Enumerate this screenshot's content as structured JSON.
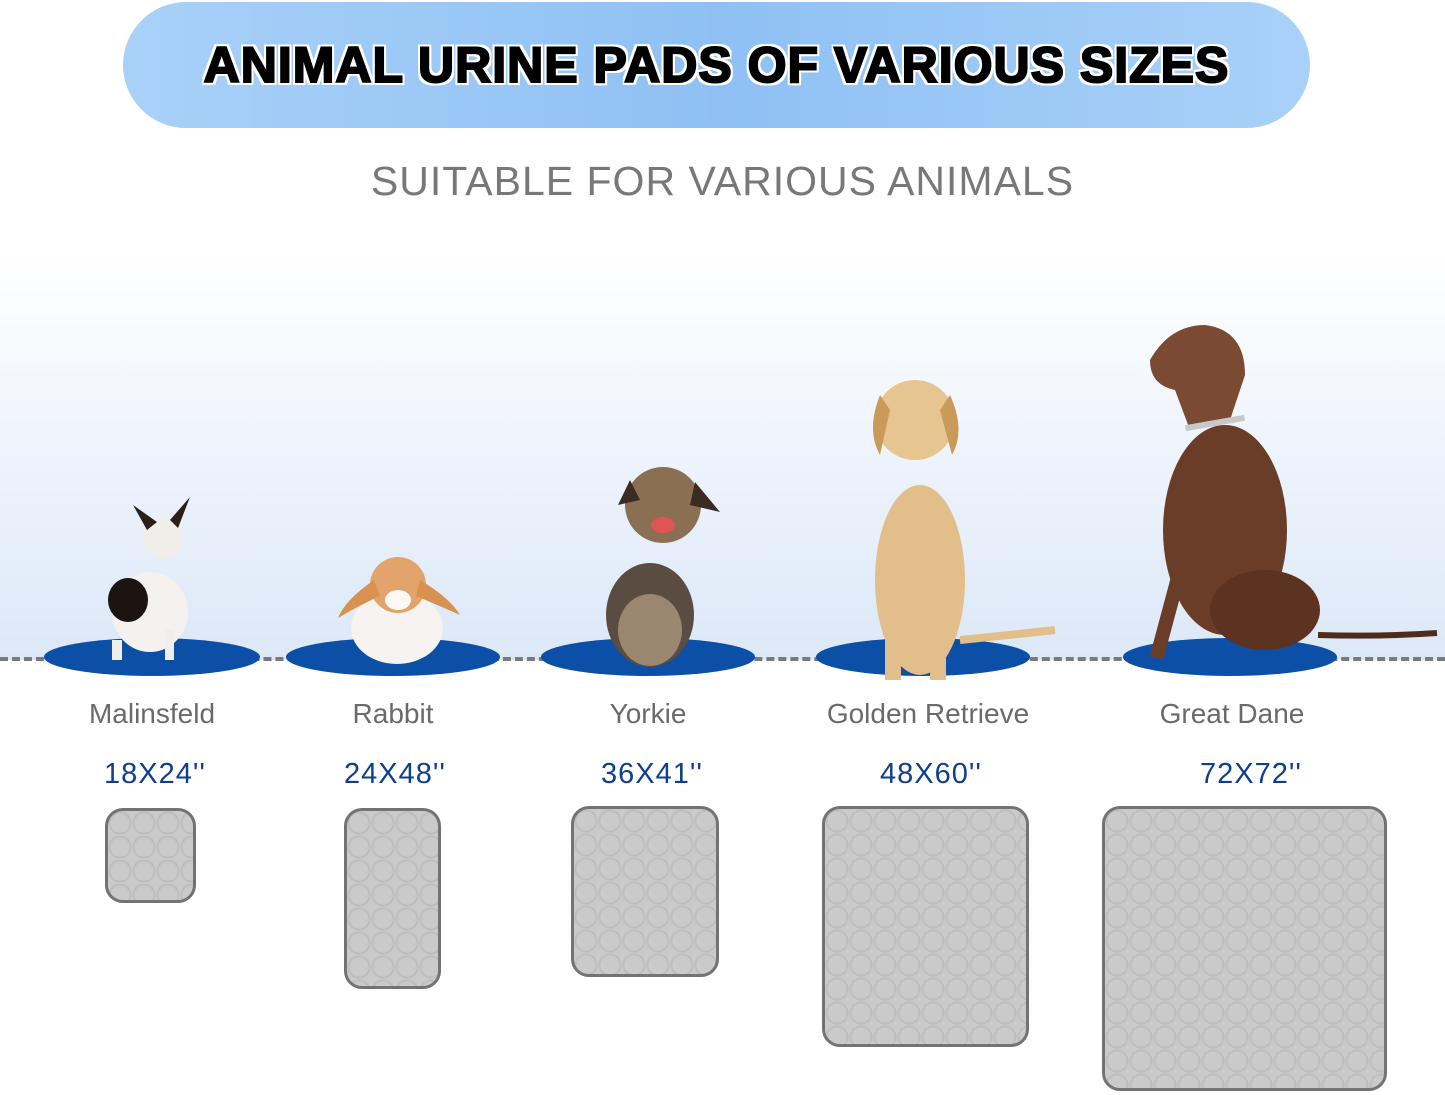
{
  "header": {
    "title": "ANIMAL URINE PADS OF VARIOUS SIZES",
    "subtitle": "SUITABLE FOR VARIOUS ANIMALS"
  },
  "colors": {
    "banner": "#9cc8f6",
    "mat": "#0b4fa6",
    "size_text": "#0d3f8c",
    "label_text": "#6a6a6a",
    "pad": "#cacaca"
  },
  "animals": [
    {
      "name": "Malinsfeld",
      "size": "18X24''"
    },
    {
      "name": "Rabbit",
      "size": "24X48''"
    },
    {
      "name": "Yorkie",
      "size": "36X41''"
    },
    {
      "name": "Golden Retrieve",
      "size": "48X60''"
    },
    {
      "name": "Great Dane",
      "size": "72X72''"
    }
  ]
}
